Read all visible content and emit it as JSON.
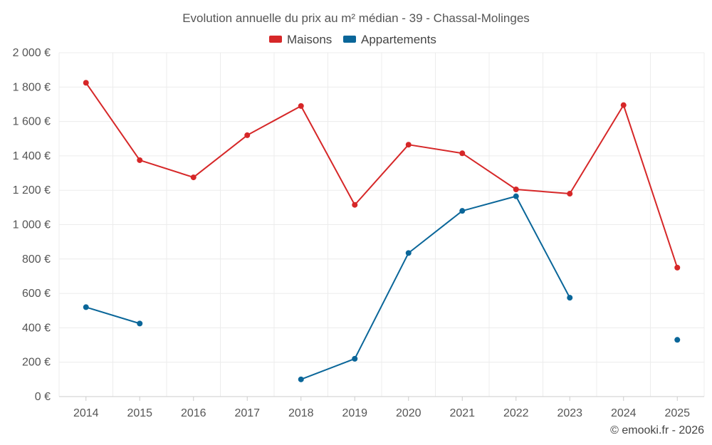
{
  "chart_data": {
    "type": "line",
    "title": "Evolution annuelle du prix au m² médian - 39 - Chassal-Molinges",
    "categories": [
      "2014",
      "2015",
      "2016",
      "2017",
      "2018",
      "2019",
      "2020",
      "2021",
      "2022",
      "2023",
      "2024",
      "2025"
    ],
    "ylim": [
      0,
      2000
    ],
    "yticks": [
      0,
      200,
      400,
      600,
      800,
      1000,
      1200,
      1400,
      1600,
      1800,
      2000
    ],
    "ytick_labels": [
      "0 €",
      "200 €",
      "400 €",
      "600 €",
      "800 €",
      "1 000 €",
      "1 200 €",
      "1 400 €",
      "1 600 €",
      "1 800 €",
      "2 000 €"
    ],
    "grid": true,
    "legend_position": "top-center",
    "series": [
      {
        "name": "Maisons",
        "color": "#d62728",
        "values": [
          1825,
          1375,
          1275,
          1520,
          1690,
          1115,
          1465,
          1415,
          1205,
          1180,
          1695,
          750
        ]
      },
      {
        "name": "Appartements",
        "color": "#0a6699",
        "values": [
          520,
          425,
          null,
          null,
          100,
          220,
          835,
          1080,
          1165,
          575,
          null,
          330
        ]
      }
    ]
  },
  "credit": "© emooki.fr - 2026"
}
